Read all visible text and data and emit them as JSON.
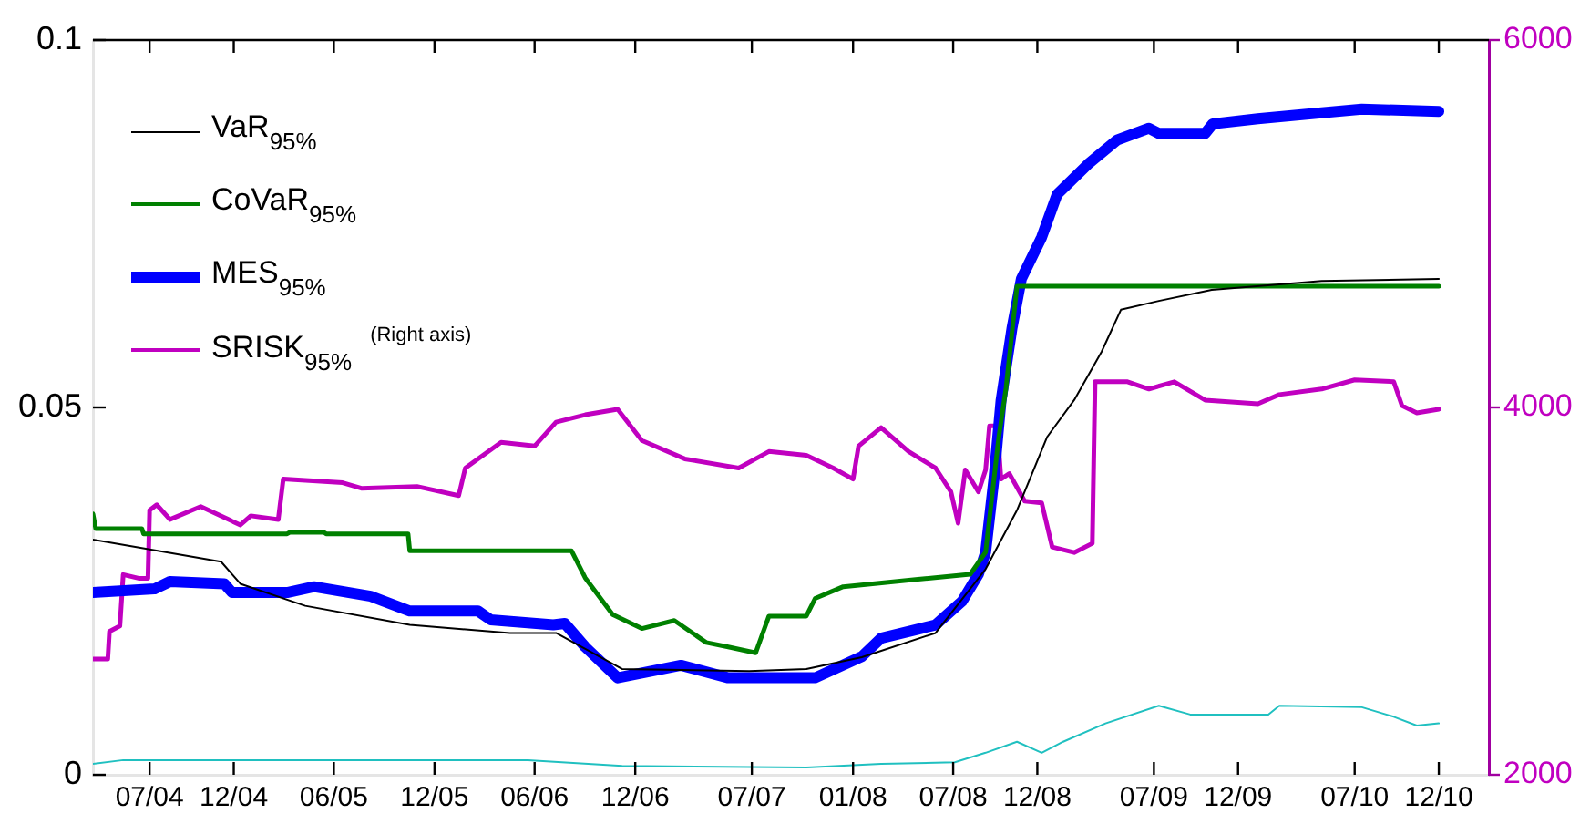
{
  "chart_data": {
    "type": "line",
    "legend": "top left",
    "xlim": [
      "2004-03-20",
      "2011-03-02"
    ],
    "xticks": [
      {
        "value": "2004-07-01",
        "label": "07/04"
      },
      {
        "value": "2004-12-01",
        "label": "12/04"
      },
      {
        "value": "2005-06-01",
        "label": "06/05"
      },
      {
        "value": "2005-12-01",
        "label": "12/05"
      },
      {
        "value": "2006-06-01",
        "label": "06/06"
      },
      {
        "value": "2006-12-01",
        "label": "12/06"
      },
      {
        "value": "2007-07-01",
        "label": "07/07"
      },
      {
        "value": "2008-01-01",
        "label": "01/08"
      },
      {
        "value": "2008-07-01",
        "label": "07/08"
      },
      {
        "value": "2008-12-01",
        "label": "12/08"
      },
      {
        "value": "2009-07-01",
        "label": "07/09"
      },
      {
        "value": "2009-12-01",
        "label": "12/09"
      },
      {
        "value": "2010-07-01",
        "label": "07/10"
      },
      {
        "value": "2010-12-01",
        "label": "12/10"
      }
    ],
    "ylim": [
      0,
      0.1
    ],
    "yticks": [
      0,
      0.05,
      0.1
    ],
    "y2lim": [
      2000,
      6000
    ],
    "y2ticks": [
      2000,
      4000,
      6000
    ],
    "series": [
      {
        "name": "VaR$_{95%}$",
        "color": "#000000",
        "x": [
          "2004-03-20",
          "2004-11-08",
          "2004-12-13",
          "2005-04-10",
          "2005-10-17",
          "2006-04-17",
          "2006-07-10",
          "2006-11-07",
          "2007-06-26",
          "2007-10-08",
          "2008-01-17",
          "2008-05-30",
          "2008-08-29",
          "2008-10-25",
          "2008-12-19",
          "2009-02-06",
          "2009-03-28",
          "2009-05-02",
          "2009-07-10",
          "2009-10-14",
          "2010-05-02",
          "2010-12-01"
        ],
        "values": [
          0.032,
          0.029,
          0.026,
          0.023,
          0.0204,
          0.0193,
          0.0193,
          0.0144,
          0.0141,
          0.0144,
          0.016,
          0.0193,
          0.028,
          0.036,
          0.046,
          0.051,
          0.0576,
          0.0633,
          0.0645,
          0.066,
          0.0672,
          0.0675
        ]
      },
      {
        "name": "CoVaR$_{95%}$",
        "color": "#008000",
        "x": [
          "2004-03-20",
          "2004-03-25",
          "2004-06-17",
          "2004-06-20",
          "2005-03-08",
          "2005-03-13",
          "2005-05-14",
          "2005-05-18",
          "2005-10-14",
          "2005-10-17",
          "2006-08-07",
          "2006-09-01",
          "2006-10-21",
          "2006-12-13",
          "2007-02-10",
          "2007-04-09",
          "2007-05-19",
          "2007-07-08",
          "2007-08-01",
          "2007-10-08",
          "2007-10-24",
          "2007-12-14",
          "2008-04-28",
          "2008-08-01",
          "2008-08-29",
          "2008-09-22",
          "2008-10-05",
          "2008-10-25",
          "2010-12-01"
        ],
        "values": [
          0.0355,
          0.0335,
          0.0335,
          0.0328,
          0.0328,
          0.033,
          0.033,
          0.0328,
          0.0328,
          0.0305,
          0.0305,
          0.0268,
          0.0218,
          0.0199,
          0.021,
          0.018,
          0.0174,
          0.0166,
          0.0216,
          0.0216,
          0.024,
          0.0256,
          0.0266,
          0.0273,
          0.0303,
          0.046,
          0.0526,
          0.0665,
          0.0665
        ]
      },
      {
        "name": "MES$_{95%}$",
        "color": "#0000ff",
        "x": [
          "2004-03-20",
          "2004-07-10",
          "2004-08-07",
          "2004-11-14",
          "2004-11-28",
          "2005-03-08",
          "2005-04-26",
          "2005-08-07",
          "2005-10-17",
          "2006-02-18",
          "2006-03-13",
          "2006-07-05",
          "2006-07-26",
          "2006-09-01",
          "2006-10-30",
          "2007-02-22",
          "2007-05-19",
          "2007-10-08",
          "2007-10-24",
          "2008-01-17",
          "2008-02-21",
          "2008-05-30",
          "2008-07-17",
          "2008-08-16",
          "2008-08-29",
          "2008-09-13",
          "2008-09-26",
          "2008-10-16",
          "2008-11-02",
          "2008-12-09",
          "2009-01-06",
          "2009-03-03",
          "2009-04-25",
          "2009-06-22",
          "2009-07-10",
          "2009-10-02",
          "2009-10-16",
          "2010-01-06",
          "2010-05-02",
          "2010-07-14",
          "2010-12-01"
        ],
        "values": [
          0.0248,
          0.0253,
          0.0263,
          0.026,
          0.0248,
          0.0248,
          0.0256,
          0.0243,
          0.0223,
          0.0223,
          0.0211,
          0.0204,
          0.0206,
          0.0174,
          0.0132,
          0.0149,
          0.0132,
          0.0132,
          0.0132,
          0.0161,
          0.0186,
          0.0204,
          0.0236,
          0.0273,
          0.0303,
          0.0402,
          0.0509,
          0.0608,
          0.0675,
          0.0732,
          0.079,
          0.0831,
          0.0864,
          0.088,
          0.0873,
          0.0873,
          0.0886,
          0.0893,
          0.0901,
          0.0906,
          0.0903
        ]
      },
      {
        "name": "SRISK$_{95%}$$^{(Right axis)}$",
        "color": "#c000c0",
        "axis": "y2",
        "x": [
          "2004-03-20",
          "2004-04-16",
          "2004-04-19",
          "2004-05-08",
          "2004-05-14",
          "2004-06-11",
          "2004-06-28",
          "2004-07-01",
          "2004-07-14",
          "2004-08-07",
          "2004-10-02",
          "2004-12-13",
          "2005-01-01",
          "2005-02-20",
          "2005-03-01",
          "2005-06-17",
          "2005-07-21",
          "2005-10-30",
          "2006-01-14",
          "2006-01-26",
          "2006-04-01",
          "2006-06-01",
          "2006-07-10",
          "2006-09-01",
          "2006-10-30",
          "2006-12-13",
          "2007-03-01",
          "2007-06-07",
          "2007-08-01",
          "2007-10-08",
          "2007-11-26",
          "2008-01-01",
          "2008-01-11",
          "2008-02-21",
          "2008-04-11",
          "2008-05-30",
          "2008-06-27",
          "2008-07-10",
          "2008-07-23",
          "2008-08-16",
          "2008-08-29",
          "2008-09-05",
          "2008-09-19",
          "2008-09-26",
          "2008-10-11",
          "2008-11-08",
          "2008-12-09",
          "2008-12-28",
          "2009-02-06",
          "2009-03-11",
          "2009-03-16",
          "2009-05-14",
          "2009-06-22",
          "2009-08-07",
          "2009-10-02",
          "2010-01-06",
          "2010-02-14",
          "2010-05-02",
          "2010-07-01",
          "2010-09-10",
          "2010-09-25",
          "2010-10-22",
          "2010-12-01"
        ],
        "values": [
          2630,
          2630,
          2780,
          2810,
          3090,
          3070,
          3070,
          3440,
          3470,
          3390,
          3460,
          3360,
          3410,
          3390,
          3610,
          3590,
          3560,
          3570,
          3520,
          3670,
          3810,
          3790,
          3920,
          3960,
          3990,
          3820,
          3720,
          3670,
          3760,
          3740,
          3670,
          3610,
          3790,
          3890,
          3760,
          3670,
          3540,
          3370,
          3660,
          3540,
          3660,
          3900,
          3900,
          3610,
          3640,
          3490,
          3480,
          3240,
          3210,
          3260,
          4140,
          4140,
          4100,
          4140,
          4040,
          4020,
          4070,
          4100,
          4150,
          4140,
          4010,
          3970,
          3990
        ]
      },
      {
        "color": "#20c0c0",
        "x": [
          "2004-03-20",
          "2004-05-14",
          "2005-06-17",
          "2006-05-20",
          "2006-11-07",
          "2007-10-08",
          "2008-02-21",
          "2008-07-04",
          "2008-08-29",
          "2008-10-25",
          "2008-12-09",
          "2009-01-17",
          "2009-04-04",
          "2009-07-10",
          "2009-09-05",
          "2010-01-25",
          "2010-02-14",
          "2010-07-14",
          "2010-09-10",
          "2010-10-22",
          "2010-12-01"
        ],
        "values": [
          0.0015,
          0.002,
          0.002,
          0.002,
          0.0012,
          0.001,
          0.0015,
          0.0017,
          0.003,
          0.0045,
          0.003,
          0.0045,
          0.007,
          0.0094,
          0.0082,
          0.0082,
          0.0094,
          0.0092,
          0.0079,
          0.0067,
          0.007
        ]
      }
    ]
  }
}
